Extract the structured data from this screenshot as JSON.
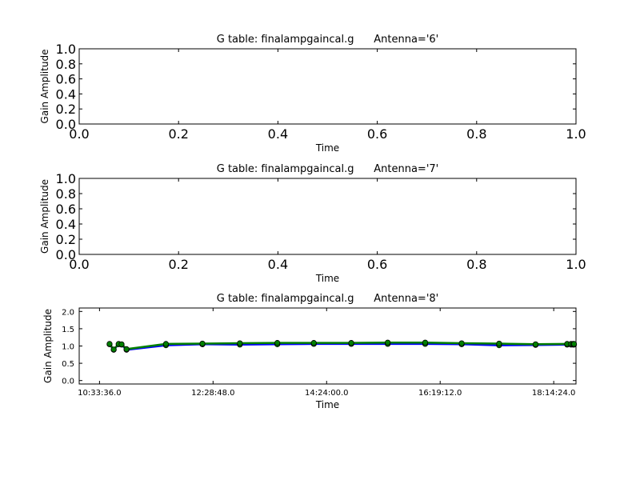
{
  "chart_data": [
    {
      "type": "line",
      "title": "G table: finalampgaincal.g      Antenna='6'",
      "xlabel": "Time",
      "ylabel": "Gain Amplitude",
      "xlim": [
        0.0,
        1.0
      ],
      "ylim": [
        0.0,
        1.0
      ],
      "xticks": [
        "0.0",
        "0.2",
        "0.4",
        "0.6",
        "0.8",
        "1.0"
      ],
      "yticks": [
        "0.0",
        "0.2",
        "0.4",
        "0.6",
        "0.8",
        "1.0"
      ],
      "grid": false,
      "series": []
    },
    {
      "type": "line",
      "title": "G table: finalampgaincal.g      Antenna='7'",
      "xlabel": "Time",
      "ylabel": "Gain Amplitude",
      "xlim": [
        0.0,
        1.0
      ],
      "ylim": [
        0.0,
        1.0
      ],
      "xticks": [
        "0.0",
        "0.2",
        "0.4",
        "0.6",
        "0.8",
        "1.0"
      ],
      "yticks": [
        "0.0",
        "0.2",
        "0.4",
        "0.6",
        "0.8",
        "1.0"
      ],
      "grid": false,
      "series": []
    },
    {
      "type": "line",
      "title": "G table: finalampgaincal.g      Antenna='8'",
      "xlabel": "Time",
      "ylabel": "Gain Amplitude",
      "xlim": [
        "10:13:00",
        "18:37:00"
      ],
      "ylim": [
        -0.1,
        2.1
      ],
      "xticks": [
        "10:33:36.0",
        "12:28:48.0",
        "14:24:00.0",
        "16:19:12.0",
        "18:14:24.0"
      ],
      "yticks": [
        "0.0",
        "0.5",
        "1.0",
        "1.5",
        "2.0"
      ],
      "grid": false,
      "x": [
        "10:43:48",
        "10:48:00",
        "10:53:00",
        "10:56:00",
        "11:01:00",
        "11:41:00",
        "12:18:00",
        "12:56:00",
        "13:34:00",
        "14:11:00",
        "14:49:00",
        "15:26:00",
        "16:04:00",
        "16:41:00",
        "17:19:00",
        "17:56:00",
        "18:28:00",
        "18:32:00",
        "18:34:00",
        "18:35:00"
      ],
      "series": [
        {
          "color": "#0000ff",
          "values": [
            1.05,
            0.89,
            1.05,
            1.04,
            0.89,
            1.02,
            1.05,
            1.04,
            1.05,
            1.06,
            1.06,
            1.06,
            1.06,
            1.05,
            1.02,
            1.03,
            1.04,
            1.04,
            1.04,
            1.04
          ]
        },
        {
          "color": "#008000",
          "values": [
            1.06,
            0.9,
            1.06,
            1.05,
            0.91,
            1.06,
            1.07,
            1.08,
            1.09,
            1.09,
            1.09,
            1.1,
            1.1,
            1.08,
            1.07,
            1.05,
            1.06,
            1.06,
            1.06,
            1.06
          ]
        }
      ]
    }
  ]
}
